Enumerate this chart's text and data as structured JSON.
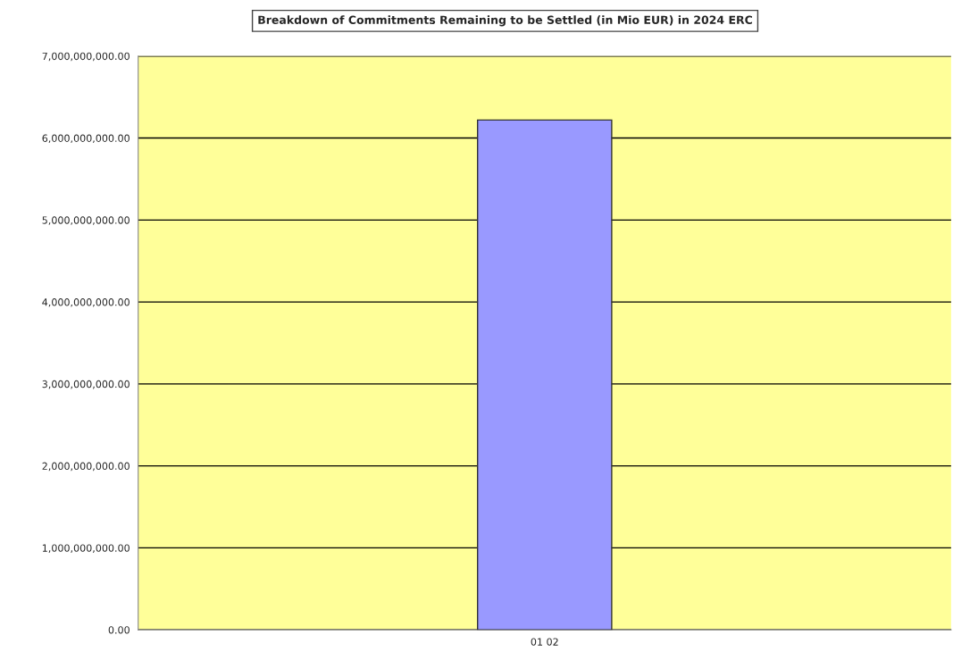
{
  "chart_data": {
    "type": "bar",
    "title": "Breakdown of Commitments Remaining to be Settled (in Mio EUR) in 2024 ERC",
    "categories": [
      "01 02"
    ],
    "values": [
      6220000000
    ],
    "color": "#9999ff",
    "ylim": [
      0,
      7000000000
    ],
    "yticks": [
      {
        "value": 0,
        "label": "0.00"
      },
      {
        "value": 1000000000,
        "label": "1,000,000,000.00"
      },
      {
        "value": 2000000000,
        "label": "2,000,000,000.00"
      },
      {
        "value": 3000000000,
        "label": "3,000,000,000.00"
      },
      {
        "value": 4000000000,
        "label": "4,000,000,000.00"
      },
      {
        "value": 5000000000,
        "label": "5,000,000,000.00"
      },
      {
        "value": 6000000000,
        "label": "6,000,000,000.00"
      },
      {
        "value": 7000000000,
        "label": "7,000,000,000.00"
      }
    ],
    "grid": "y"
  }
}
